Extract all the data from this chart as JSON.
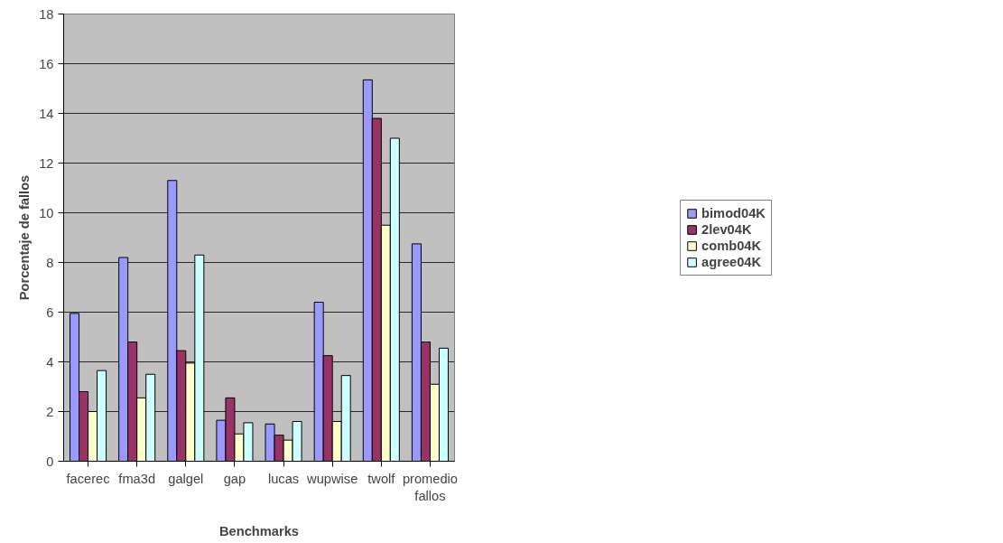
{
  "chart_data": {
    "type": "bar",
    "xlabel": "Benchmarks",
    "ylabel": "Porcentaje de fallos",
    "categories": [
      "facerec",
      "fma3d",
      "galgel",
      "gap",
      "lucas",
      "wupwise",
      "twolf",
      "promedio fallos"
    ],
    "series": [
      {
        "name": "bimod04K",
        "color": "#9999ff",
        "values": [
          5.95,
          8.2,
          11.3,
          1.65,
          1.5,
          6.4,
          15.35,
          8.75
        ]
      },
      {
        "name": "2lev04K",
        "color": "#993366",
        "values": [
          2.8,
          4.8,
          4.45,
          2.55,
          1.05,
          4.25,
          13.8,
          4.8
        ]
      },
      {
        "name": "comb04K",
        "color": "#ffffcc",
        "values": [
          2.0,
          2.55,
          3.95,
          1.1,
          0.85,
          1.6,
          9.5,
          3.1
        ]
      },
      {
        "name": "agree04K",
        "color": "#ccffff",
        "values": [
          3.65,
          3.5,
          8.3,
          1.55,
          1.6,
          3.45,
          13.0,
          4.55
        ]
      }
    ],
    "ylim": [
      0,
      18
    ],
    "yticks": [
      0,
      2,
      4,
      6,
      8,
      10,
      12,
      14,
      16,
      18
    ],
    "grid": "y",
    "legend": "right"
  }
}
